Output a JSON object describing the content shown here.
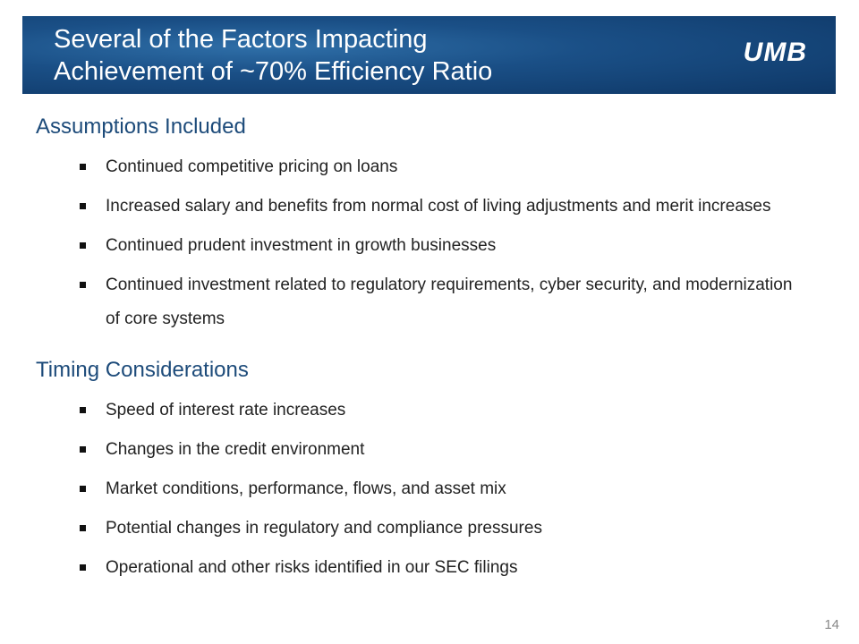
{
  "header": {
    "title_lines": [
      "Several of the Factors Impacting",
      "Achievement of ~70% Efficiency Ratio"
    ],
    "logo": "UMB"
  },
  "sections": [
    {
      "heading": "Assumptions Included",
      "bullets": [
        "Continued competitive pricing on loans",
        "Increased salary and benefits from normal cost of living adjustments and merit increases",
        "Continued prudent investment in growth businesses",
        "Continued investment related to regulatory requirements, cyber security, and modernization of core systems"
      ]
    },
    {
      "heading": "Timing Considerations",
      "bullets": [
        "Speed of interest rate increases",
        "Changes in the credit environment",
        "Market conditions, performance, flows, and asset mix",
        "Potential changes in regulatory and compliance pressures",
        "Operational and other risks identified in our SEC filings"
      ]
    }
  ],
  "page_number": "14"
}
